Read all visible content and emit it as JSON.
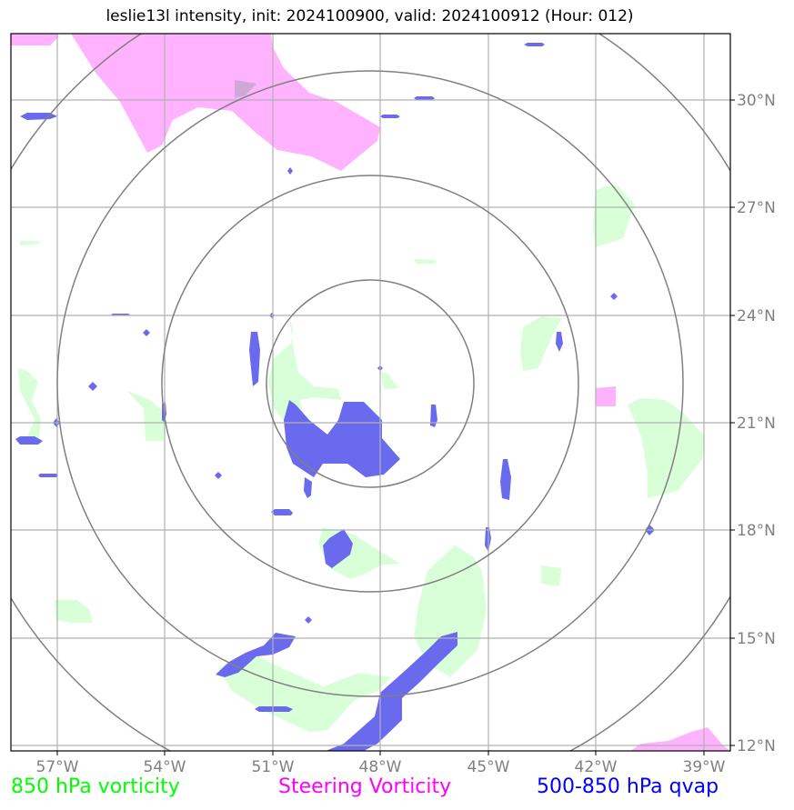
{
  "title": "leslie13l intensity, init: 2024100900, valid: 2024100912 (Hour: 012)",
  "legend": [
    {
      "label": "850 hPa vorticity",
      "color": "#00ff00"
    },
    {
      "label": "Steering Vorticity",
      "color": "#ff00ff"
    },
    {
      "label": "500-850 hPa qvap",
      "color": "#0000ff"
    }
  ],
  "map": {
    "lon_labels": [
      "57°W",
      "54°W",
      "51°W",
      "48°W",
      "45°W",
      "42°W",
      "39°W"
    ],
    "lat_labels": [
      "30°N",
      "27°N",
      "24°N",
      "21°N",
      "18°N",
      "15°N",
      "12°N"
    ],
    "center": {
      "lon": -48.25,
      "lat": 22.0
    },
    "range_ring_count": 4,
    "colors": {
      "vorticity_fill": "#d9ffd9",
      "steering_fill": "#ffb3ff",
      "qvap_fill": "#6a6aee",
      "rings": "#808080",
      "grid": "#b0b0b0"
    }
  }
}
